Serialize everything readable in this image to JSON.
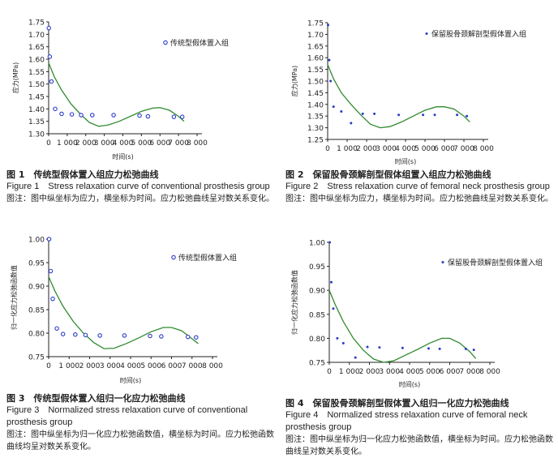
{
  "chart_data": [
    {
      "type": "scatter",
      "ylabel": "应力(MPa)",
      "xlabel": "时间(s)",
      "legend": "传统型假体置入组",
      "legend_marker": "open-circle",
      "xlim": [
        0,
        8000
      ],
      "ylim": [
        1.3,
        1.75
      ],
      "xticks": [
        "0",
        "1 000",
        "2 000",
        "3 000",
        "4 000",
        "5 000",
        "6 000",
        "7 000",
        "8 000"
      ],
      "yticks": [
        "1.30",
        "1.35",
        "1.40",
        "1.45",
        "1.50",
        "1.55",
        "1.60",
        "1.65",
        "1.70",
        "1.75"
      ],
      "points": [
        [
          10,
          1.725
        ],
        [
          60,
          1.61
        ],
        [
          150,
          1.51
        ],
        [
          350,
          1.4
        ],
        [
          700,
          1.38
        ],
        [
          1250,
          1.378
        ],
        [
          1750,
          1.375
        ],
        [
          2350,
          1.375
        ],
        [
          3500,
          1.375
        ],
        [
          4900,
          1.373
        ],
        [
          5350,
          1.37
        ],
        [
          6750,
          1.368
        ],
        [
          7200,
          1.368
        ]
      ],
      "curve": [
        [
          0,
          1.585
        ],
        [
          300,
          1.53
        ],
        [
          700,
          1.475
        ],
        [
          1200,
          1.42
        ],
        [
          1700,
          1.38
        ],
        [
          2200,
          1.345
        ],
        [
          2700,
          1.33
        ],
        [
          3200,
          1.335
        ],
        [
          3800,
          1.35
        ],
        [
          4400,
          1.37
        ],
        [
          5000,
          1.39
        ],
        [
          5600,
          1.403
        ],
        [
          6000,
          1.405
        ],
        [
          6500,
          1.395
        ],
        [
          7000,
          1.37
        ],
        [
          7300,
          1.35
        ]
      ]
    },
    {
      "type": "scatter",
      "ylabel": "应力(MPa)",
      "xlabel": "时间(s)",
      "legend": "保留股骨颈解剖型假体置入组",
      "legend_marker": "dot",
      "xlim": [
        0,
        8000
      ],
      "ylim": [
        1.25,
        1.75
      ],
      "xticks": [
        "0",
        "1 000",
        "2 000",
        "3 000",
        "4 000",
        "5 000",
        "6 000",
        "7 000",
        "8 000"
      ],
      "yticks": [
        "1.25",
        "1.30",
        "1.35",
        "1.40",
        "1.45",
        "1.50",
        "1.55",
        "1.60",
        "1.65",
        "1.70",
        "1.75"
      ],
      "points": [
        [
          20,
          1.74
        ],
        [
          80,
          1.59
        ],
        [
          150,
          1.5
        ],
        [
          300,
          1.39
        ],
        [
          700,
          1.37
        ],
        [
          1200,
          1.32
        ],
        [
          1800,
          1.36
        ],
        [
          2400,
          1.36
        ],
        [
          3650,
          1.355
        ],
        [
          4900,
          1.355
        ],
        [
          5500,
          1.355
        ],
        [
          6650,
          1.355
        ],
        [
          7150,
          1.35
        ]
      ],
      "curve": [
        [
          0,
          1.57
        ],
        [
          300,
          1.51
        ],
        [
          700,
          1.45
        ],
        [
          1200,
          1.4
        ],
        [
          1700,
          1.355
        ],
        [
          2200,
          1.315
        ],
        [
          2700,
          1.3
        ],
        [
          3200,
          1.305
        ],
        [
          3800,
          1.325
        ],
        [
          4400,
          1.35
        ],
        [
          5000,
          1.375
        ],
        [
          5600,
          1.39
        ],
        [
          6000,
          1.39
        ],
        [
          6500,
          1.38
        ],
        [
          7000,
          1.35
        ],
        [
          7300,
          1.325
        ]
      ]
    },
    {
      "type": "scatter",
      "ylabel": "归一化应力松弛函数值",
      "xlabel": "时间(s)",
      "legend": "传统型假体置入组",
      "legend_marker": "open-circle",
      "xlim": [
        0,
        8000
      ],
      "ylim": [
        0.75,
        1.0
      ],
      "xticks": [
        "0",
        "1 000",
        "2 000",
        "3 000",
        "4 000",
        "5 000",
        "6 000",
        "7 000",
        "8 000"
      ],
      "yticks": [
        "0.75",
        "0.80",
        "0.85",
        "0.90",
        "0.95",
        "1.00"
      ],
      "points": [
        [
          20,
          1.0
        ],
        [
          100,
          0.932
        ],
        [
          200,
          0.873
        ],
        [
          400,
          0.81
        ],
        [
          700,
          0.798
        ],
        [
          1300,
          0.797
        ],
        [
          1800,
          0.796
        ],
        [
          2500,
          0.795
        ],
        [
          3700,
          0.795
        ],
        [
          4950,
          0.794
        ],
        [
          5500,
          0.793
        ],
        [
          6800,
          0.792
        ],
        [
          7200,
          0.791
        ]
      ],
      "curve": [
        [
          0,
          0.92
        ],
        [
          300,
          0.89
        ],
        [
          700,
          0.857
        ],
        [
          1200,
          0.825
        ],
        [
          1700,
          0.8
        ],
        [
          2200,
          0.78
        ],
        [
          2700,
          0.767
        ],
        [
          3200,
          0.768
        ],
        [
          3800,
          0.778
        ],
        [
          4400,
          0.79
        ],
        [
          5000,
          0.803
        ],
        [
          5600,
          0.812
        ],
        [
          6000,
          0.812
        ],
        [
          6500,
          0.805
        ],
        [
          7000,
          0.788
        ],
        [
          7300,
          0.778
        ]
      ]
    },
    {
      "type": "scatter",
      "ylabel": "归一化应力松弛函数值",
      "xlabel": "时间(s)",
      "legend": "保留股骨颈解剖型假体置入组",
      "legend_marker": "dot",
      "xlim": [
        0,
        8000
      ],
      "ylim": [
        0.75,
        1.0
      ],
      "xticks": [
        "0",
        "1 000",
        "2 000",
        "3 000",
        "4 000",
        "5 000",
        "6 000",
        "7 000",
        "8 000"
      ],
      "yticks": [
        "0.75",
        "0.80",
        "0.85",
        "0.90",
        "0.95",
        "1.00"
      ],
      "points": [
        [
          20,
          1.0
        ],
        [
          100,
          0.917
        ],
        [
          200,
          0.862
        ],
        [
          400,
          0.8
        ],
        [
          700,
          0.79
        ],
        [
          1300,
          0.76
        ],
        [
          1900,
          0.782
        ],
        [
          2500,
          0.781
        ],
        [
          3650,
          0.78
        ],
        [
          4950,
          0.779
        ],
        [
          5500,
          0.778
        ],
        [
          6800,
          0.778
        ],
        [
          7200,
          0.776
        ]
      ],
      "curve": [
        [
          0,
          0.9
        ],
        [
          300,
          0.87
        ],
        [
          700,
          0.835
        ],
        [
          1200,
          0.8
        ],
        [
          1700,
          0.775
        ],
        [
          2200,
          0.757
        ],
        [
          2700,
          0.75
        ],
        [
          3200,
          0.753
        ],
        [
          3800,
          0.765
        ],
        [
          4400,
          0.777
        ],
        [
          5000,
          0.79
        ],
        [
          5600,
          0.8
        ],
        [
          6000,
          0.8
        ],
        [
          6500,
          0.79
        ],
        [
          7000,
          0.772
        ],
        [
          7300,
          0.758
        ]
      ]
    }
  ],
  "captions": [
    {
      "cn": "图 1　传统型假体置入组应力松弛曲线",
      "en": "Figure 1　Stress relaxation curve of conventional prosthesis group",
      "note": "图注：图中纵坐标为应力，横坐标为时间。应力松弛曲线呈对数关系变化。"
    },
    {
      "cn": "图 2　保留股骨颈解剖型假体组置入组应力松弛曲线",
      "en": "Figure 2　Stress relaxation curve of femoral neck prosthesis group",
      "note": "图注：图中纵坐标为应力，横坐标为时间。应力松弛曲线呈对数关系变化。"
    },
    {
      "cn": "图 3　传统型假体置入组归一化应力松弛曲线",
      "en": "Figure 3　Normalized stress relaxation curve of conventional prosthesis group",
      "note": "图注：图中纵坐标为归一化应力松弛函数值，横坐标为时间。应力松弛函数曲线均呈对数关系变化。"
    },
    {
      "cn": "图 4　保留股骨颈解剖型假体置入组归一化应力松弛曲线",
      "en": "Figure 4　Normalized stress relaxation curve of femoral neck prosthesis group",
      "note": "图注：图中纵坐标为归一化应力松弛函数值，横坐标为时间。应力松弛函数曲线呈对数关系变化。"
    }
  ],
  "colors": {
    "marker": "#2a3bc7",
    "curve": "#2f8a2f",
    "axis": "#222222"
  }
}
